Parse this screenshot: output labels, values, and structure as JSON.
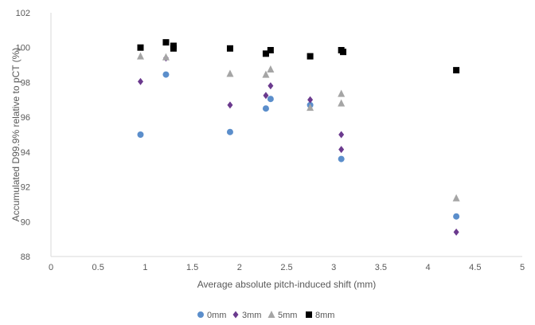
{
  "chart_data": {
    "type": "scatter",
    "xlabel": "Average absolute pitch-induced shift (mm)",
    "ylabel": "Accumulated D99.9% relative to pCT (%)",
    "xlim": [
      0,
      5
    ],
    "ylim": [
      88,
      102
    ],
    "x_ticks": [
      "0",
      "0.5",
      "1",
      "1.5",
      "2",
      "2.5",
      "3",
      "3.5",
      "4",
      "4.5",
      "5"
    ],
    "y_ticks": [
      "88",
      "90",
      "92",
      "94",
      "96",
      "98",
      "100",
      "102"
    ],
    "grid": false,
    "legend_position": "bottom",
    "series": [
      {
        "name": "0mm",
        "marker": "circle",
        "color": "#5B8ECB",
        "points": [
          [
            0.95,
            95.0
          ],
          [
            1.22,
            98.45
          ],
          [
            1.9,
            95.15
          ],
          [
            2.28,
            96.5
          ],
          [
            2.33,
            97.05
          ],
          [
            2.75,
            96.7
          ],
          [
            3.08,
            93.6
          ],
          [
            4.3,
            90.3
          ]
        ]
      },
      {
        "name": "3mm",
        "marker": "diamond",
        "color": "#6B3A8E",
        "points": [
          [
            0.95,
            98.05
          ],
          [
            1.22,
            99.4
          ],
          [
            1.9,
            96.7
          ],
          [
            2.28,
            97.25
          ],
          [
            2.33,
            97.8
          ],
          [
            2.75,
            97.0
          ],
          [
            3.08,
            95.0
          ],
          [
            3.08,
            94.15
          ],
          [
            4.3,
            89.4
          ]
        ]
      },
      {
        "name": "5mm",
        "marker": "triangle",
        "color": "#A5A5A5",
        "points": [
          [
            0.95,
            99.5
          ],
          [
            1.22,
            99.45
          ],
          [
            1.9,
            98.5
          ],
          [
            2.28,
            98.45
          ],
          [
            2.33,
            98.75
          ],
          [
            2.75,
            96.55
          ],
          [
            3.08,
            97.35
          ],
          [
            3.08,
            96.8
          ],
          [
            4.3,
            91.35
          ]
        ]
      },
      {
        "name": "8mm",
        "marker": "square",
        "color": "#000000",
        "points": [
          [
            0.95,
            100.0
          ],
          [
            1.22,
            100.3
          ],
          [
            1.3,
            100.1
          ],
          [
            1.3,
            99.95
          ],
          [
            1.9,
            99.95
          ],
          [
            2.28,
            99.65
          ],
          [
            2.33,
            99.85
          ],
          [
            2.75,
            99.5
          ],
          [
            3.08,
            99.85
          ],
          [
            3.1,
            99.75
          ],
          [
            4.3,
            98.7
          ]
        ]
      }
    ]
  }
}
